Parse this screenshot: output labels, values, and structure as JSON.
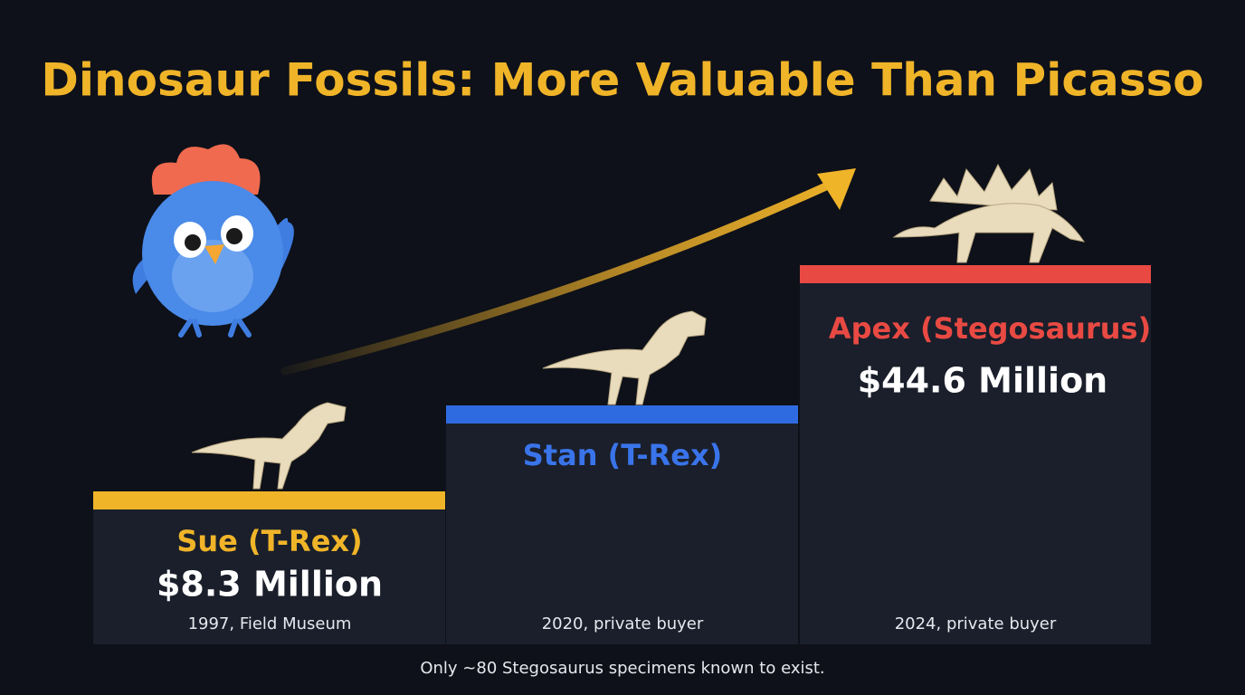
{
  "title": "Dinosaur Fossils: More Valuable Than Picasso",
  "steps": [
    {
      "name": "Sue (T-Rex)",
      "price": "$8.3 Million",
      "note": "1997, Field Museum"
    },
    {
      "name": "Stan (T-Rex)",
      "note": "2020, private buyer"
    },
    {
      "name": "Apex (Stegosaurus)",
      "price": "$44.6 Million",
      "note": "2024, private buyer"
    }
  ],
  "footnote": "Only ~80 Stegosaurus specimens known to exist."
}
